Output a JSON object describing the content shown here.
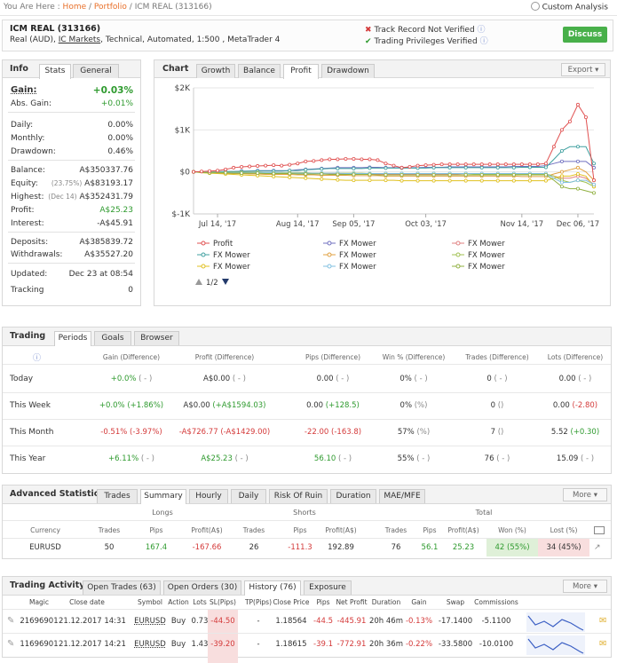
{
  "breadcrumb": {
    "prefix": "You Are Here :",
    "home": "Home",
    "portfolio": "Portfolio",
    "current": "ICM REAL (313166)"
  },
  "custom_analysis": "Custom Analysis",
  "account": {
    "title": "ICM REAL (313166)",
    "sub_prefix": "Real (AUD), ",
    "broker": "IC Markets",
    "sub_suffix": ", Technical, Automated, 1:500 , MetaTrader 4",
    "track_record": "Track Record Not Verified",
    "trading_priv": "Trading Privileges Verified",
    "discuss": "Discuss"
  },
  "info": {
    "title": "Info",
    "tabs": [
      "Stats",
      "General"
    ],
    "gain_label": "Gain:",
    "gain_value": "+0.03%",
    "abs_gain_label": "Abs. Gain:",
    "abs_gain_value": "+0.01%",
    "daily_label": "Daily:",
    "daily_value": "0.00%",
    "monthly_label": "Monthly:",
    "monthly_value": "0.00%",
    "drawdown_label": "Drawdown:",
    "drawdown_value": "0.46%",
    "balance_label": "Balance:",
    "balance_value": "A$350337.76",
    "equity_label": "Equity:",
    "equity_note": "(23.75%)",
    "equity_value": "A$83193.17",
    "highest_label": "Highest:",
    "highest_note": "(Dec 14)",
    "highest_value": "A$352431.79",
    "profit_label": "Profit:",
    "profit_value": "A$25.23",
    "interest_label": "Interest:",
    "interest_value": "-A$45.91",
    "deposits_label": "Deposits:",
    "deposits_value": "A$385839.72",
    "withdrawals_label": "Withdrawals:",
    "withdrawals_value": "A$35527.20",
    "updated_label": "Updated:",
    "updated_value": "Dec 23 at 08:54",
    "tracking_label": "Tracking",
    "tracking_value": "0"
  },
  "chart": {
    "title": "Chart",
    "tabs": [
      "Growth",
      "Balance",
      "Profit",
      "Drawdown"
    ],
    "export": "Export",
    "pager": "1/2",
    "legend": [
      "Profit",
      "FX Mower",
      "FX Mower",
      "FX Mower",
      "FX Mower",
      "FX Mower",
      "FX Mower",
      "FX Mower",
      "FX Mower"
    ]
  },
  "chart_data": {
    "type": "line",
    "title": "",
    "xlabel": "",
    "ylabel": "",
    "y_ticks": [
      "$2K",
      "$1K",
      "$0",
      "$-1K"
    ],
    "x_ticks": [
      "Jul 14, '17",
      "Aug 14, '17",
      "Sep 05, '17",
      "Oct 03, '17",
      "Nov 14, '17",
      "Dec 06, '17"
    ],
    "ylim": [
      -1000,
      2000
    ],
    "x": [
      0,
      1,
      2,
      3,
      4,
      5,
      6,
      7,
      8,
      9,
      10,
      11,
      12,
      13,
      14,
      15,
      16,
      17,
      18,
      19,
      20,
      21,
      22,
      23,
      24,
      25,
      26,
      27,
      28,
      29,
      30,
      31,
      32,
      33,
      34,
      35,
      36,
      37,
      38,
      39,
      40,
      41,
      42,
      43,
      44,
      45,
      46,
      47,
      48,
      49,
      50
    ],
    "series": [
      {
        "name": "Profit",
        "color": "#e05050",
        "values": [
          0,
          10,
          20,
          30,
          60,
          100,
          120,
          130,
          140,
          150,
          160,
          150,
          170,
          200,
          250,
          260,
          280,
          300,
          300,
          310,
          310,
          300,
          300,
          280,
          200,
          150,
          100,
          120,
          150,
          160,
          170,
          180,
          180,
          180,
          180,
          180,
          180,
          180,
          180,
          180,
          180,
          180,
          180,
          180,
          200,
          600,
          1000,
          1200,
          1600,
          1300,
          -200
        ]
      },
      {
        "name": "FX Mower",
        "color": "#7070c0",
        "values": [
          0,
          0,
          0,
          10,
          10,
          10,
          20,
          20,
          30,
          30,
          30,
          30,
          30,
          50,
          60,
          70,
          80,
          90,
          100,
          100,
          100,
          100,
          110,
          110,
          100,
          100,
          100,
          100,
          100,
          110,
          110,
          110,
          120,
          120,
          120,
          120,
          120,
          120,
          120,
          120,
          130,
          130,
          130,
          130,
          150,
          200,
          250,
          250,
          250,
          250,
          100
        ]
      },
      {
        "name": "FX Mower",
        "color": "#e08080",
        "values": [
          0,
          -10,
          -10,
          -20,
          -20,
          -20,
          -30,
          -30,
          -30,
          -40,
          -40,
          -40,
          -40,
          -30,
          -30,
          -30,
          -30,
          -40,
          -40,
          -40,
          -40,
          -50,
          -50,
          -50,
          -50,
          -60,
          -60,
          -60,
          -60,
          -60,
          -60,
          -60,
          -60,
          -60,
          -70,
          -70,
          -70,
          -70,
          -70,
          -70,
          -70,
          -70,
          -70,
          -70,
          -70,
          -100,
          -150,
          -150,
          -100,
          -150,
          -300
        ]
      },
      {
        "name": "FX Mower",
        "color": "#40a0a0",
        "values": [
          0,
          0,
          0,
          0,
          10,
          10,
          10,
          20,
          20,
          20,
          20,
          20,
          30,
          30,
          50,
          60,
          70,
          80,
          80,
          80,
          80,
          80,
          90,
          90,
          90,
          90,
          90,
          90,
          90,
          90,
          100,
          100,
          100,
          100,
          100,
          100,
          100,
          100,
          100,
          100,
          100,
          110,
          110,
          110,
          110,
          300,
          500,
          600,
          600,
          600,
          200
        ]
      },
      {
        "name": "FX Mower",
        "color": "#e0a040",
        "values": [
          0,
          -10,
          -20,
          -30,
          -40,
          -40,
          -40,
          -50,
          -50,
          -60,
          -60,
          -60,
          -60,
          -70,
          -70,
          -70,
          -80,
          -80,
          -80,
          -80,
          -90,
          -90,
          -90,
          -90,
          -100,
          -100,
          -100,
          -100,
          -100,
          -100,
          -100,
          -100,
          -100,
          -100,
          -100,
          -100,
          -100,
          -100,
          -100,
          -100,
          -100,
          -110,
          -110,
          -110,
          -110,
          -50,
          0,
          50,
          100,
          0,
          -200
        ]
      },
      {
        "name": "FX Mower",
        "color": "#a0c050",
        "values": [
          0,
          0,
          0,
          0,
          -10,
          -10,
          -10,
          -10,
          -10,
          -20,
          -20,
          -20,
          -20,
          -20,
          -20,
          -30,
          -30,
          -30,
          -30,
          -30,
          -30,
          -30,
          -40,
          -40,
          -40,
          -40,
          -40,
          -40,
          -40,
          -40,
          -40,
          -40,
          -40,
          -40,
          -40,
          -50,
          -50,
          -50,
          -50,
          -50,
          -50,
          -50,
          -50,
          -50,
          -50,
          -100,
          -200,
          -250,
          -200,
          -250,
          -350
        ]
      },
      {
        "name": "FX Mower",
        "color": "#e0c020",
        "values": [
          0,
          -20,
          -30,
          -40,
          -50,
          -60,
          -70,
          -80,
          -90,
          -100,
          -110,
          -120,
          -130,
          -140,
          -150,
          -160,
          -170,
          -180,
          -190,
          -200,
          -200,
          -200,
          -200,
          -200,
          -200,
          -200,
          -210,
          -210,
          -210,
          -210,
          -210,
          -210,
          -210,
          -210,
          -210,
          -210,
          -210,
          -210,
          -210,
          -210,
          -210,
          -210,
          -210,
          -210,
          -210,
          -150,
          -100,
          -100,
          -50,
          -100,
          -350
        ]
      },
      {
        "name": "FX Mower",
        "color": "#80c0e0",
        "values": [
          0,
          -10,
          -10,
          -10,
          -10,
          -20,
          -20,
          -20,
          -20,
          -20,
          -20,
          -30,
          -30,
          -30,
          -30,
          -30,
          -30,
          -30,
          -30,
          -40,
          -40,
          -40,
          -40,
          -40,
          -40,
          -40,
          -40,
          -40,
          -40,
          -40,
          -40,
          -40,
          -40,
          -40,
          -40,
          -40,
          -40,
          -40,
          -40,
          -40,
          -40,
          -40,
          -40,
          -40,
          -40,
          -150,
          -250,
          -250,
          -200,
          -200,
          -300
        ]
      },
      {
        "name": "FX Mower",
        "color": "#90b040",
        "values": [
          0,
          -10,
          -20,
          -20,
          -20,
          -30,
          -30,
          -30,
          -30,
          -40,
          -40,
          -40,
          -40,
          -50,
          -50,
          -50,
          -50,
          -60,
          -60,
          -60,
          -60,
          -60,
          -60,
          -70,
          -70,
          -70,
          -70,
          -70,
          -70,
          -70,
          -70,
          -70,
          -70,
          -70,
          -70,
          -70,
          -70,
          -70,
          -70,
          -70,
          -70,
          -70,
          -70,
          -70,
          -70,
          -200,
          -350,
          -400,
          -400,
          -450,
          -500
        ]
      }
    ]
  },
  "trading": {
    "title": "Trading",
    "tabs": [
      "Periods",
      "Goals",
      "Browser"
    ],
    "headers": [
      "Gain (Difference)",
      "Profit (Difference)",
      "Pips (Difference)",
      "Win % (Difference)",
      "Trades (Difference)",
      "Lots (Difference)"
    ],
    "rows": [
      {
        "label": "Today",
        "gain": "+0.0%",
        "gain_d": "( - )",
        "profit": "A$0.00",
        "profit_d": "( - )",
        "pips": "0.00",
        "pips_d": "( - )",
        "win": "0%",
        "win_d": "( - )",
        "trades": "0",
        "trades_d": "( - )",
        "lots": "0.00",
        "lots_d": "( - )"
      },
      {
        "label": "This Week",
        "gain": "+0.0%",
        "gain_d": "(+1.86%)",
        "profit": "A$0.00",
        "profit_d": "(+A$1594.03)",
        "pips": "0.00",
        "pips_d": "(+128.5)",
        "win": "0%",
        "win_d": "(%)",
        "trades": "0",
        "trades_d": "()",
        "lots": "0.00",
        "lots_d": "(-2.80)"
      },
      {
        "label": "This Month",
        "gain": "-0.51%",
        "gain_d": "(-3.97%)",
        "profit": "-A$726.77",
        "profit_d": "(-A$1429.00)",
        "pips": "-22.00",
        "pips_d": "(-163.8)",
        "win": "57%",
        "win_d": "(%)",
        "trades": "7",
        "trades_d": "()",
        "lots": "5.52",
        "lots_d": "(+0.30)"
      },
      {
        "label": "This Year",
        "gain": "+6.11%",
        "gain_d": "( - )",
        "profit": "A$25.23",
        "profit_d": "( - )",
        "pips": "56.10",
        "pips_d": "( - )",
        "win": "55%",
        "win_d": "( - )",
        "trades": "76",
        "trades_d": "( - )",
        "lots": "15.09",
        "lots_d": "( - )"
      }
    ]
  },
  "advanced": {
    "title": "Advanced Statistics",
    "tabs": [
      "Trades",
      "Summary",
      "Hourly",
      "Daily",
      "Risk Of Ruin",
      "Duration",
      "MAE/MFE"
    ],
    "more": "More",
    "groups": [
      "Longs",
      "Shorts",
      "Total"
    ],
    "headers": [
      "Currency",
      "Trades",
      "Pips",
      "Profit(A$)",
      "Trades",
      "Pips",
      "Profit(A$)",
      "Trades",
      "Pips",
      "Profit(A$)",
      "Won (%)",
      "Lost (%)"
    ],
    "row": [
      "EURUSD",
      "50",
      "167.4",
      "-167.66",
      "26",
      "-111.3",
      "192.89",
      "76",
      "56.1",
      "25.23",
      "42 (55%)",
      "34 (45%)"
    ]
  },
  "activity": {
    "title": "Trading Activity",
    "tabs": [
      "Open Trades (63)",
      "Open Orders (30)",
      "History (76)",
      "Exposure"
    ],
    "more": "More",
    "headers": [
      "Magic",
      "Close date",
      "Symbol",
      "Action",
      "Lots",
      "SL(Pips)",
      "TP(Pips)",
      "Close Price",
      "Pips",
      "Net Profit",
      "Duration",
      "Gain",
      "Swap",
      "Commissions"
    ],
    "rows": [
      [
        "21696901",
        "21.12.2017 14:31",
        "EURUSD",
        "Buy",
        "0.73",
        "-44.50",
        "-",
        "1.18564",
        "-44.5",
        "-445.91",
        "20h 46m",
        "-0.13%",
        "-17.1400",
        "-5.1100"
      ],
      [
        "11696901",
        "21.12.2017 14:21",
        "EURUSD",
        "Buy",
        "1.43",
        "-39.20",
        "-",
        "1.18615",
        "-39.1",
        "-772.91",
        "20h 36m",
        "-0.22%",
        "-33.5800",
        "-10.0100"
      ]
    ]
  }
}
